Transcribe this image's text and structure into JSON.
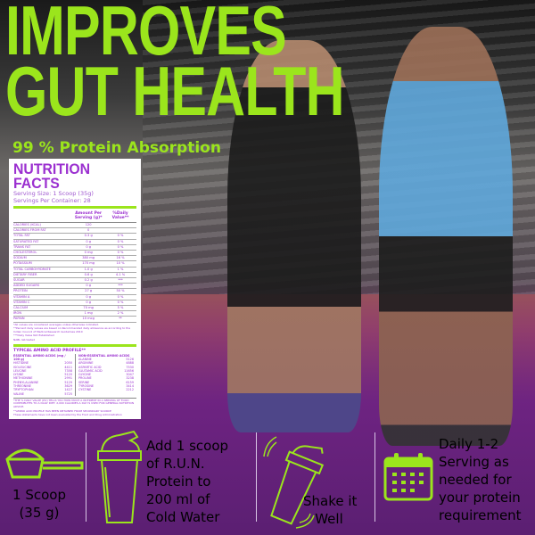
{
  "headline": [
    "IMPROVES",
    "GUT HEALTH"
  ],
  "subheadline": "99 % Protein Absorption",
  "nutrition": {
    "title": "NUTRITION FACTS",
    "serving_size": "Serving Size: 1 Scoop (35g)",
    "servings": "Servings Per Container: 28",
    "col_amount": "Amount Per Serving (g)*",
    "col_dv": "%Daily Value**",
    "rows": [
      [
        "CALORIES (KCAL)",
        "120",
        ""
      ],
      [
        "CALORIES FROM FAT",
        "0",
        ""
      ],
      [
        "TOTAL FAT",
        "0.3 g",
        "0 %"
      ],
      [
        "SATURATED FAT",
        "0 g",
        "0 %"
      ],
      [
        "TRANS FAT",
        "0 g",
        "0 %"
      ],
      [
        "CHOLESTEROL",
        "0 mg",
        "0 %"
      ],
      [
        "SODIUM",
        "380 mg",
        "16 %"
      ],
      [
        "POTASSIUM",
        "170 mg",
        "10 %"
      ],
      [
        "TOTAL CARBOHYDRATE",
        "1.0 g",
        "1 %"
      ],
      [
        "DIETARY FIBER",
        "0.6 g",
        "4.1 %"
      ],
      [
        "SUGAR",
        "0.2 g",
        "***"
      ],
      [
        "ADDED SUGARS",
        "0 g",
        "***"
      ],
      [
        "PROTEIN",
        "27 g",
        "50 %"
      ],
      [
        "VITAMIN A",
        "0 g",
        "0 %"
      ],
      [
        "VITAMIN C",
        "0 g",
        "0 %"
      ],
      [
        "CALCIUM",
        "70 mg",
        "5 %"
      ],
      [
        "IRON",
        "1 mg",
        "2 %"
      ],
      [
        "PAPAIN",
        "10 mcg",
        "**"
      ]
    ],
    "notes": [
      "*All values are considered averages unless otherwise indicated.",
      "**Percent daily values are based on Recommended daily allowance as according to the Indian Council of Medical Research Guidelines 2010",
      "***Daily Value Not Established",
      "NABL lab tested"
    ],
    "amino_title": "TYPICAL AMINO ACID PROFILE**",
    "essential_header": "ESSENTIAL AMINO ACIDS (mg / 100 g)",
    "nonessential_header": "NON-ESSENTIAL AMINO ACIDS",
    "essential": [
      [
        "HISTIDINE",
        "2050"
      ],
      [
        "ISOLEUCINE",
        "4411"
      ],
      [
        "LEUCINE",
        "7358"
      ],
      [
        "LYSINE",
        "5120"
      ],
      [
        "METHIONINE",
        "2991"
      ],
      [
        "PHENYLALANINE",
        "5129"
      ],
      [
        "THREONINE",
        "3629"
      ],
      [
        "TRYPTOPHAN",
        "1427"
      ],
      [
        "VALINE",
        "5725"
      ]
    ],
    "nonessential": [
      [
        "ALANINE",
        "5126"
      ],
      [
        "ARGININE",
        "4888"
      ],
      [
        "ASPARTIC ACID",
        "7530"
      ],
      [
        "GLUTAMIC ACID",
        "11656"
      ],
      [
        "GLYCINE",
        "3047"
      ],
      [
        "PROLINE",
        "3238"
      ],
      [
        "SERINE",
        "6159"
      ],
      [
        "TYROSINE",
        "3414"
      ],
      [
        "CYSTINE",
        "2212"
      ]
    ],
    "footnotes": [
      "*THE % DAILY VALUE (DV) TELLS YOU HOW MUCH A NUTRIENT IN A SERVING OF FOOD CONTRIBUTES TO A DAILY DIET. 2,000 CALORIES A DAY IS USED FOR GENERAL NUTRITION ADVICE.",
      "**AMINO ACID PROFILE HAS BEEN OBTAINED FROM SECONDARY SOURCE",
      "These statements have not been evaluated by the Food and Drug Administration"
    ]
  },
  "steps": [
    {
      "icon": "scoop-icon",
      "text": [
        "1 Scoop",
        "(35 g)"
      ]
    },
    {
      "icon": "shaker-icon",
      "text": [
        "Add 1 scoop",
        "of R.U.N.",
        "Protein to",
        "200 ml of",
        "Cold Water"
      ]
    },
    {
      "icon": "shaking-shaker-icon",
      "text": [
        "Shake it",
        "Well"
      ]
    },
    {
      "icon": "calendar-icon",
      "text": [
        "Daily 1-2",
        "Serving as",
        "needed for",
        "your protein",
        "requirement"
      ]
    }
  ],
  "colors": {
    "accent": "#9be51c",
    "nutrition": "#9b30d0"
  }
}
